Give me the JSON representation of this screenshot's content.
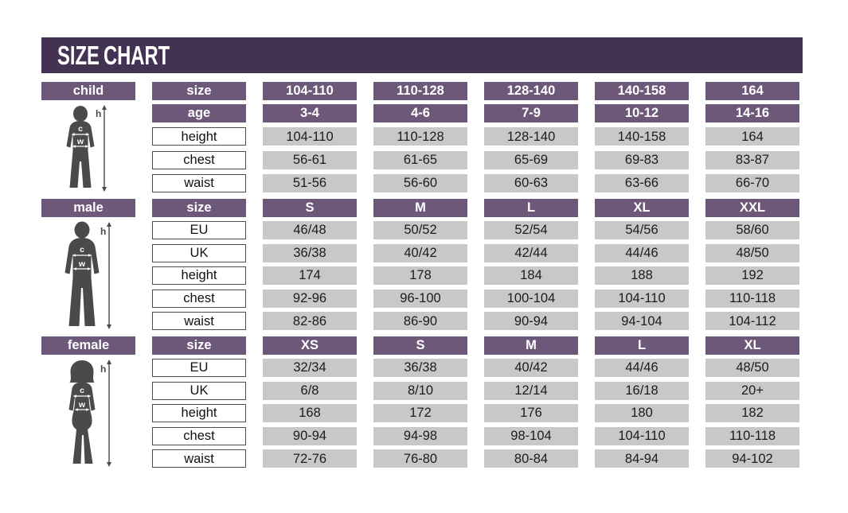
{
  "title": "SIZE CHART",
  "colors": {
    "header_bg": "#443253",
    "accent_purple": "#6d5879",
    "cell_gray": "#c9c8c8",
    "figure_gray": "#4a4a4a"
  },
  "figure_labels": {
    "height": "h",
    "chest": "c",
    "waist": "w"
  },
  "chart_data": {
    "type": "table",
    "tables": [
      {
        "id": "child",
        "label": "child",
        "header_rows": [
          {
            "label": "size",
            "values": [
              "104-110",
              "110-128",
              "128-140",
              "140-158",
              "164"
            ]
          },
          {
            "label": "age",
            "values": [
              "3-4",
              "4-6",
              "7-9",
              "10-12",
              "14-16"
            ]
          }
        ],
        "rows": [
          {
            "label": "height",
            "values": [
              "104-110",
              "110-128",
              "128-140",
              "140-158",
              "164"
            ]
          },
          {
            "label": "chest",
            "values": [
              "56-61",
              "61-65",
              "65-69",
              "69-83",
              "83-87"
            ]
          },
          {
            "label": "waist",
            "values": [
              "51-56",
              "56-60",
              "60-63",
              "63-66",
              "66-70"
            ]
          }
        ]
      },
      {
        "id": "male",
        "label": "male",
        "header_rows": [
          {
            "label": "size",
            "values": [
              "S",
              "M",
              "L",
              "XL",
              "XXL"
            ]
          }
        ],
        "rows": [
          {
            "label": "EU",
            "values": [
              "46/48",
              "50/52",
              "52/54",
              "54/56",
              "58/60"
            ]
          },
          {
            "label": "UK",
            "values": [
              "36/38",
              "40/42",
              "42/44",
              "44/46",
              "48/50"
            ]
          },
          {
            "label": "height",
            "values": [
              "174",
              "178",
              "184",
              "188",
              "192"
            ]
          },
          {
            "label": "chest",
            "values": [
              "92-96",
              "96-100",
              "100-104",
              "104-110",
              "110-118"
            ]
          },
          {
            "label": "waist",
            "values": [
              "82-86",
              "86-90",
              "90-94",
              "94-104",
              "104-112"
            ]
          }
        ]
      },
      {
        "id": "female",
        "label": "female",
        "header_rows": [
          {
            "label": "size",
            "values": [
              "XS",
              "S",
              "M",
              "L",
              "XL"
            ]
          }
        ],
        "rows": [
          {
            "label": "EU",
            "values": [
              "32/34",
              "36/38",
              "40/42",
              "44/46",
              "48/50"
            ]
          },
          {
            "label": "UK",
            "values": [
              "6/8",
              "8/10",
              "12/14",
              "16/18",
              "20+"
            ]
          },
          {
            "label": "height",
            "values": [
              "168",
              "172",
              "176",
              "180",
              "182"
            ]
          },
          {
            "label": "chest",
            "values": [
              "90-94",
              "94-98",
              "98-104",
              "104-110",
              "110-118"
            ]
          },
          {
            "label": "waist",
            "values": [
              "72-76",
              "76-80",
              "80-84",
              "84-94",
              "94-102"
            ]
          }
        ]
      }
    ]
  }
}
